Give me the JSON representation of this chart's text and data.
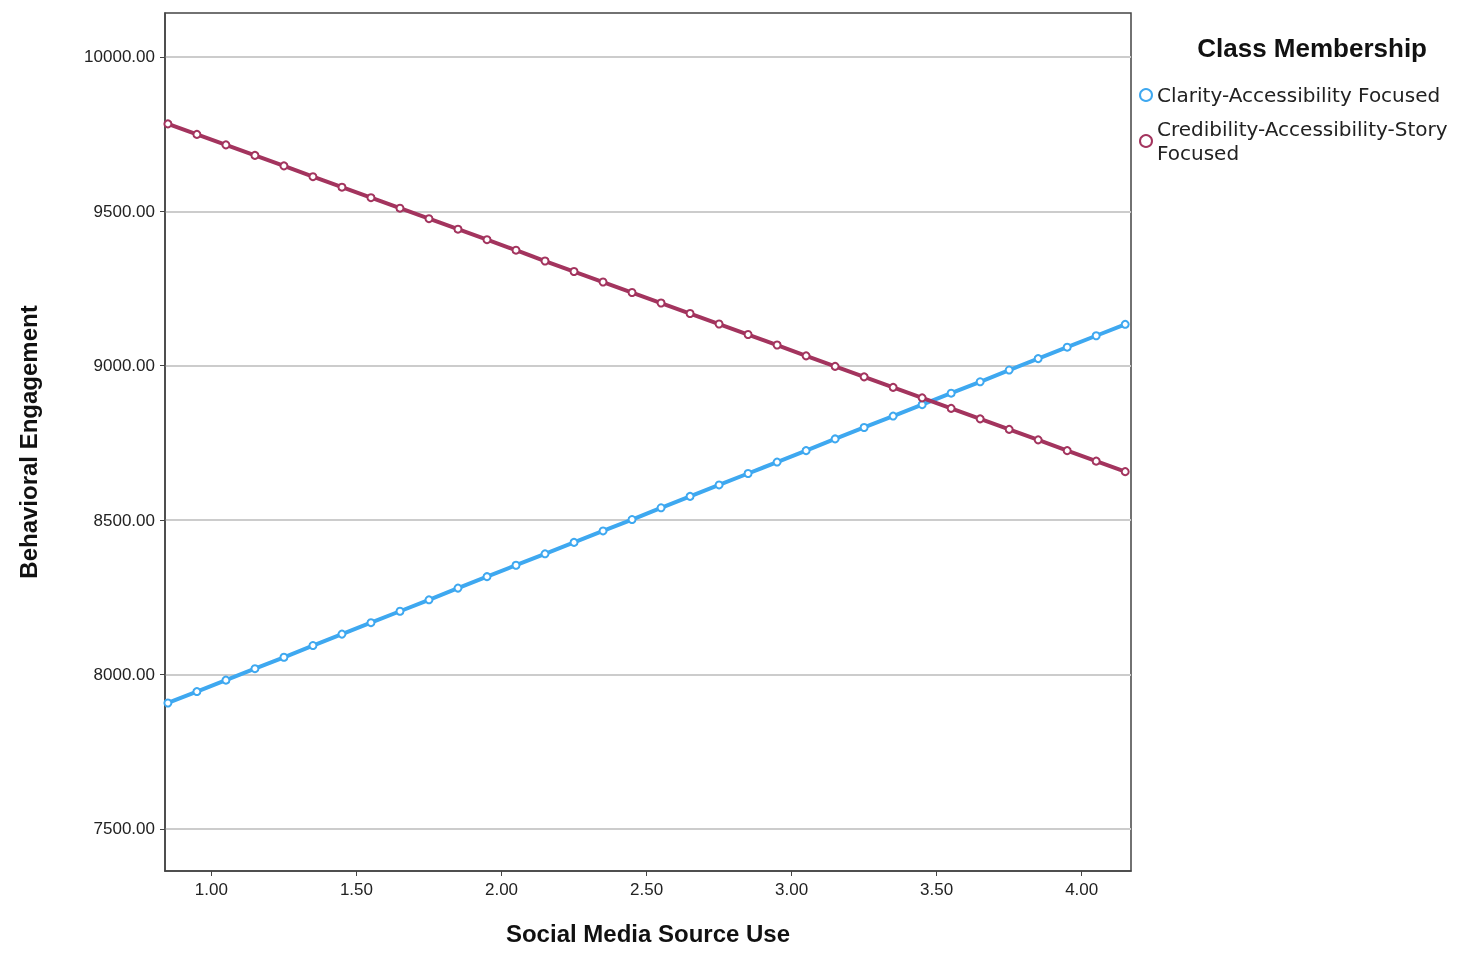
{
  "chart_data": {
    "type": "line",
    "xlabel": "Social Media Source Use",
    "ylabel": "Behavioral Engagement",
    "legend_title": "Class Membership",
    "legend": "top right",
    "grid": "y",
    "marker": "circle",
    "line_style": "solid",
    "xlim": [
      0.84,
      4.17
    ],
    "ylim": [
      7364,
      10142
    ],
    "xticks": [
      {
        "value": 1,
        "label": "1.00"
      },
      {
        "value": 1.5,
        "label": "1.50"
      },
      {
        "value": 2,
        "label": "2.00"
      },
      {
        "value": 2.5,
        "label": "2.50"
      },
      {
        "value": 3,
        "label": "3.00"
      },
      {
        "value": 3.5,
        "label": "3.50"
      },
      {
        "value": 4,
        "label": "4.00"
      }
    ],
    "yticks": [
      {
        "value": 7500,
        "label": "7500.00"
      },
      {
        "value": 8000,
        "label": "8000.00"
      },
      {
        "value": 8500,
        "label": "8500.00"
      },
      {
        "value": 9000,
        "label": "9000.00"
      },
      {
        "value": 9500,
        "label": "9500.00"
      },
      {
        "value": 10000,
        "label": "10000.00"
      }
    ],
    "x": [
      0.85,
      0.95,
      1.05,
      1.15,
      1.25,
      1.35,
      1.45,
      1.55,
      1.65,
      1.75,
      1.85,
      1.95,
      2.05,
      2.15,
      2.25,
      2.35,
      2.45,
      2.55,
      2.65,
      2.75,
      2.85,
      2.95,
      3.05,
      3.15,
      3.25,
      3.35,
      3.45,
      3.55,
      3.65,
      3.75,
      3.85,
      3.95,
      4.05,
      4.15
    ],
    "series": [
      {
        "name": "Clarity-Accessibility Focused",
        "color": "#3ea8f0",
        "values": [
          7908,
          7945,
          7982,
          8019,
          8056,
          8094,
          8131,
          8168,
          8205,
          8242,
          8280,
          8317,
          8354,
          8391,
          8428,
          8465,
          8502,
          8540,
          8577,
          8614,
          8651,
          8688,
          8725,
          8763,
          8800,
          8837,
          8874,
          8911,
          8948,
          8986,
          9023,
          9060,
          9097,
          9134
        ]
      },
      {
        "name": "Credibility-Accessibility-Story Focused",
        "color": "#a3345e",
        "values": [
          9783,
          9749,
          9715,
          9681,
          9647,
          9612,
          9578,
          9544,
          9510,
          9476,
          9442,
          9408,
          9374,
          9339,
          9305,
          9271,
          9237,
          9203,
          9169,
          9135,
          9101,
          9067,
          9032,
          8998,
          8964,
          8930,
          8896,
          8862,
          8828,
          8794,
          8760,
          8725,
          8691,
          8657
        ]
      }
    ]
  }
}
